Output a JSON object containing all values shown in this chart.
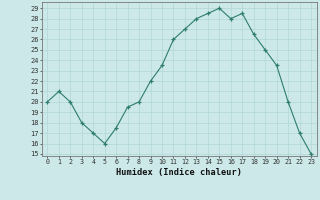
{
  "x": [
    0,
    1,
    2,
    3,
    4,
    5,
    6,
    7,
    8,
    9,
    10,
    11,
    12,
    13,
    14,
    15,
    16,
    17,
    18,
    19,
    20,
    21,
    22,
    23
  ],
  "y": [
    20,
    21,
    20,
    18,
    17,
    16,
    17.5,
    19.5,
    20,
    22,
    23.5,
    26,
    27,
    28,
    28.5,
    29,
    28,
    28.5,
    26.5,
    25,
    23.5,
    20,
    17,
    15
  ],
  "line_color": "#2e7d6e",
  "marker_color": "#2e7d6e",
  "bg_color": "#cce8e8",
  "grid_color": "#b0d8d4",
  "xlabel": "Humidex (Indice chaleur)",
  "ylim_min": 14.8,
  "ylim_max": 29.6,
  "xlim_min": -0.5,
  "xlim_max": 23.5,
  "yticks": [
    15,
    16,
    17,
    18,
    19,
    20,
    21,
    22,
    23,
    24,
    25,
    26,
    27,
    28,
    29
  ],
  "xtick_labels": [
    "0",
    "1",
    "2",
    "3",
    "4",
    "5",
    "6",
    "7",
    "8",
    "9",
    "10",
    "11",
    "12",
    "13",
    "14",
    "15",
    "16",
    "17",
    "18",
    "19",
    "20",
    "21",
    "22",
    "23"
  ]
}
